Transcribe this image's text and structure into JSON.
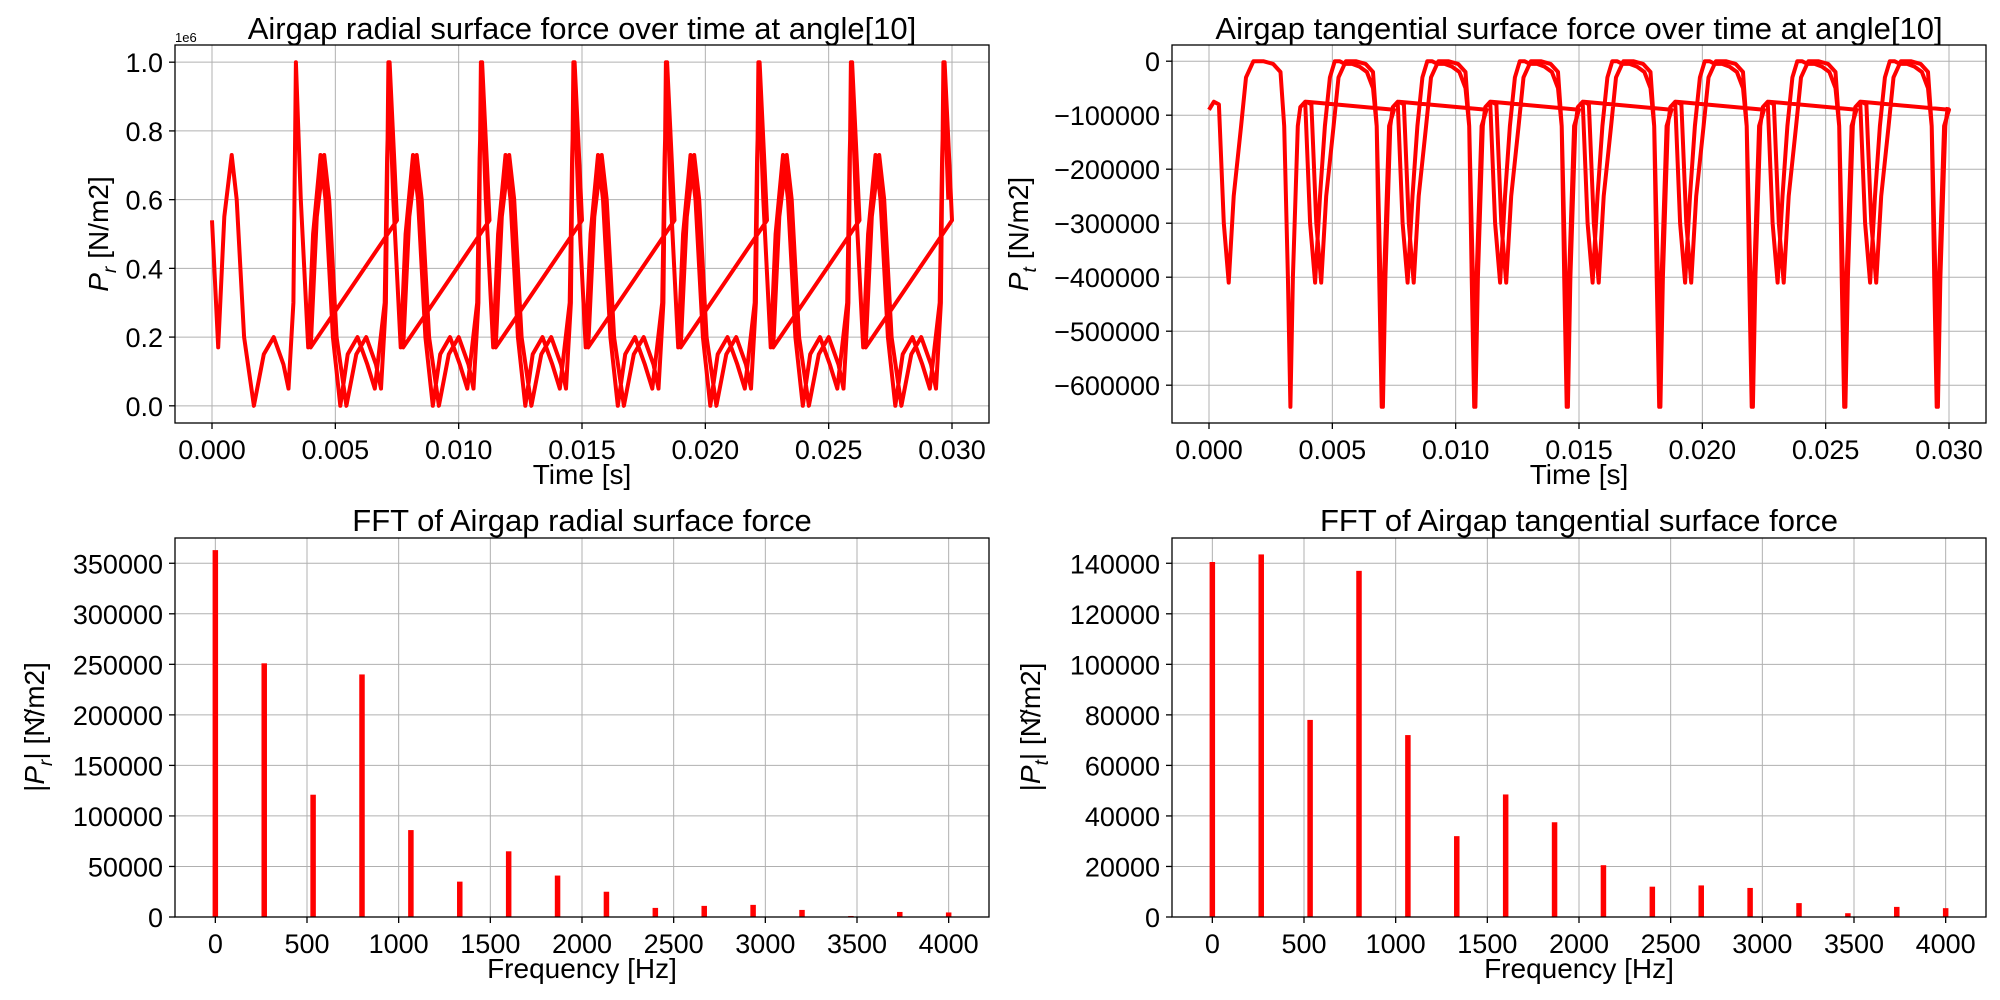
{
  "colors": {
    "series": "#ff0000",
    "grid": "#b0b0b0",
    "axis": "#000000"
  },
  "chart_data": [
    {
      "type": "line",
      "title": "Airgap radial surface force over time at angle[10]",
      "xlabel": "Time [s]",
      "ylabel": "P_r [N/m2]",
      "ylabel_parts": {
        "main": "P",
        "sub": "r",
        "unit": "[N/m2]"
      },
      "y_offset_label": "1e6",
      "xlim": [
        -0.0015,
        0.0315
      ],
      "ylim": [
        -0.05,
        1.05
      ],
      "xticks": [
        0.0,
        0.005,
        0.01,
        0.015,
        0.02,
        0.025,
        0.03
      ],
      "xtick_labels": [
        "0.000",
        "0.005",
        "0.010",
        "0.015",
        "0.020",
        "0.025",
        "0.030"
      ],
      "yticks": [
        0.0,
        0.2,
        0.4,
        0.6,
        0.8,
        1.0
      ],
      "ytick_labels": [
        "0.0",
        "0.2",
        "0.4",
        "0.6",
        "0.8",
        "1.0"
      ],
      "grid": true,
      "period": 0.00375,
      "series": [
        {
          "x": [
            0.0,
            0.00025,
            0.0005,
            0.0008,
            0.001,
            0.0013,
            0.0017,
            0.0021,
            0.0025,
            0.0029,
            0.0031,
            0.0033,
            0.0034,
            0.0036,
            0.0039,
            0.0041,
            0.0044,
            0.0046,
            0.0049,
            0.0052,
            0.0055,
            0.0059,
            0.0063,
            0.0066,
            0.007,
            0.0071,
            0.0072,
            0.0074,
            0.0075
          ],
          "y": [
            0.54,
            0.17,
            0.55,
            0.73,
            0.6,
            0.2,
            0.0,
            0.15,
            0.2,
            0.12,
            0.05,
            0.3,
            1.0,
            0.6,
            0.17,
            0.5,
            0.73,
            0.6,
            0.2,
            0.0,
            0.15,
            0.2,
            0.12,
            0.05,
            0.3,
            0.72,
            1.0,
            0.7,
            0.54
          ]
        }
      ]
    },
    {
      "type": "line",
      "title": "Airgap tangential surface force over time at angle[10]",
      "xlabel": "Time [s]",
      "ylabel": "P_t [N/m2]",
      "ylabel_parts": {
        "main": "P",
        "sub": "t",
        "unit": "[N/m2]"
      },
      "xlim": [
        -0.0015,
        0.0315
      ],
      "ylim": [
        -670000,
        30000
      ],
      "xticks": [
        0.0,
        0.005,
        0.01,
        0.015,
        0.02,
        0.025,
        0.03
      ],
      "xtick_labels": [
        "0.000",
        "0.005",
        "0.010",
        "0.015",
        "0.020",
        "0.025",
        "0.030"
      ],
      "yticks": [
        0,
        -100000,
        -200000,
        -300000,
        -400000,
        -500000,
        -600000
      ],
      "ytick_labels": [
        "0",
        "−100000",
        "−200000",
        "−300000",
        "−400000",
        "−500000",
        "−600000"
      ],
      "grid": true,
      "period": 0.00375,
      "series": [
        {
          "x": [
            0.0,
            0.0002,
            0.0004,
            0.0006,
            0.0008,
            0.001,
            0.0013,
            0.0015,
            0.0018,
            0.0022,
            0.0026,
            0.0029,
            0.00305,
            0.0032,
            0.0033,
            0.0034,
            0.0036,
            0.0037,
            0.0039,
            0.0041,
            0.0043,
            0.0045,
            0.0047,
            0.0049,
            0.0051,
            0.0053,
            0.0055,
            0.0058,
            0.0061,
            0.0064,
            0.00665,
            0.0068,
            0.0069,
            0.007,
            0.0071,
            0.0073,
            0.0075
          ],
          "y": [
            -90000,
            -75000,
            -80000,
            -300000,
            -410000,
            -250000,
            -120000,
            -30000,
            0,
            0,
            -5000,
            -20000,
            -120000,
            -400000,
            -640000,
            -400000,
            -120000,
            -85000,
            -75000,
            -300000,
            -410000,
            -250000,
            -120000,
            -30000,
            0,
            0,
            -5000,
            -5000,
            -10000,
            -20000,
            -50000,
            -120000,
            -400000,
            -640000,
            -400000,
            -120000,
            -90000
          ]
        }
      ]
    },
    {
      "type": "bar",
      "title": "FFT of Airgap radial surface force",
      "xlabel": "Frequency [Hz]",
      "ylabel": "|P_r^| [N/m2]",
      "ylabel_parts": {
        "main": "P",
        "sub": "r",
        "unit": "[N/m2]"
      },
      "xlim": [
        -220,
        4220
      ],
      "ylim": [
        0,
        375000
      ],
      "xticks": [
        0,
        500,
        1000,
        1500,
        2000,
        2500,
        3000,
        3500,
        4000
      ],
      "xtick_labels": [
        "0",
        "500",
        "1000",
        "1500",
        "2000",
        "2500",
        "3000",
        "3500",
        "4000"
      ],
      "yticks": [
        0,
        50000,
        100000,
        150000,
        200000,
        250000,
        300000,
        350000
      ],
      "ytick_labels": [
        "0",
        "50000",
        "100000",
        "150000",
        "200000",
        "250000",
        "300000",
        "350000"
      ],
      "grid": true,
      "bar_width_hz": 30,
      "x": [
        0,
        266.7,
        533.3,
        800,
        1066.7,
        1333.3,
        1600,
        1866.7,
        2133.3,
        2400,
        2666.7,
        2933.3,
        3200,
        3466.7,
        3733.3,
        4000
      ],
      "values": [
        363000,
        251000,
        121000,
        240000,
        86000,
        35000,
        65000,
        41000,
        25000,
        9000,
        11000,
        12000,
        7000,
        1000,
        5000,
        4500
      ]
    },
    {
      "type": "bar",
      "title": "FFT of Airgap tangential surface force",
      "xlabel": "Frequency [Hz]",
      "ylabel": "|P_t^| [N/m2]",
      "ylabel_parts": {
        "main": "P",
        "sub": "t",
        "unit": "[N/m2]"
      },
      "xlim": [
        -220,
        4220
      ],
      "ylim": [
        0,
        150000
      ],
      "xticks": [
        0,
        500,
        1000,
        1500,
        2000,
        2500,
        3000,
        3500,
        4000
      ],
      "xtick_labels": [
        "0",
        "500",
        "1000",
        "1500",
        "2000",
        "2500",
        "3000",
        "3500",
        "4000"
      ],
      "yticks": [
        0,
        20000,
        40000,
        60000,
        80000,
        100000,
        120000,
        140000
      ],
      "ytick_labels": [
        "0",
        "20000",
        "40000",
        "60000",
        "80000",
        "100000",
        "120000",
        "140000"
      ],
      "grid": true,
      "bar_width_hz": 30,
      "x": [
        0,
        266.7,
        533.3,
        800,
        1066.7,
        1333.3,
        1600,
        1866.7,
        2133.3,
        2400,
        2666.7,
        2933.3,
        3200,
        3466.7,
        3733.3,
        4000
      ],
      "values": [
        140500,
        143500,
        78000,
        137000,
        72000,
        32000,
        48500,
        37500,
        20500,
        12000,
        12500,
        11500,
        5500,
        1500,
        4000,
        3500
      ]
    }
  ]
}
